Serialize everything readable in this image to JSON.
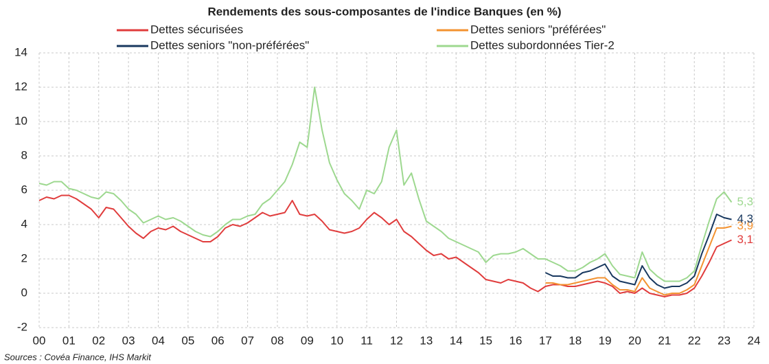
{
  "chart_data": {
    "type": "line",
    "title": "Rendements des sous-composantes de l'indice Banques (en %)",
    "source": "Sources : Covéa Finance, IHS Markit",
    "x": [
      2000,
      2000.25,
      2000.5,
      2000.75,
      2001,
      2001.25,
      2001.5,
      2001.75,
      2002,
      2002.25,
      2002.5,
      2002.75,
      2003,
      2003.25,
      2003.5,
      2003.75,
      2004,
      2004.25,
      2004.5,
      2004.75,
      2005,
      2005.25,
      2005.5,
      2005.75,
      2006,
      2006.25,
      2006.5,
      2006.75,
      2007,
      2007.25,
      2007.5,
      2007.75,
      2008,
      2008.25,
      2008.5,
      2008.75,
      2009,
      2009.25,
      2009.5,
      2009.75,
      2010,
      2010.25,
      2010.5,
      2010.75,
      2011,
      2011.25,
      2011.5,
      2011.75,
      2012,
      2012.25,
      2012.5,
      2012.75,
      2013,
      2013.25,
      2013.5,
      2013.75,
      2014,
      2014.25,
      2014.5,
      2014.75,
      2015,
      2015.25,
      2015.5,
      2015.75,
      2016,
      2016.25,
      2016.5,
      2016.75,
      2017,
      2017.25,
      2017.5,
      2017.75,
      2018,
      2018.25,
      2018.5,
      2018.75,
      2019,
      2019.25,
      2019.5,
      2019.75,
      2020,
      2020.25,
      2020.5,
      2020.75,
      2021,
      2021.25,
      2021.5,
      2021.75,
      2022,
      2022.25,
      2022.5,
      2022.75,
      2023,
      2023.25
    ],
    "series": [
      {
        "name": "Dettes sécurisées",
        "color": "#e03c3c",
        "values": [
          5.4,
          5.6,
          5.5,
          5.7,
          5.7,
          5.5,
          5.2,
          4.9,
          4.4,
          5.0,
          4.9,
          4.4,
          3.9,
          3.5,
          3.2,
          3.6,
          3.8,
          3.7,
          3.9,
          3.6,
          3.4,
          3.2,
          3.0,
          3.0,
          3.3,
          3.8,
          4.0,
          3.9,
          4.1,
          4.4,
          4.7,
          4.5,
          4.6,
          4.7,
          5.4,
          4.6,
          4.5,
          4.6,
          4.2,
          3.7,
          3.6,
          3.5,
          3.6,
          3.8,
          4.3,
          4.7,
          4.4,
          4.0,
          4.3,
          3.6,
          3.3,
          2.9,
          2.5,
          2.2,
          2.3,
          2.0,
          2.1,
          1.8,
          1.5,
          1.2,
          0.8,
          0.7,
          0.6,
          0.8,
          0.7,
          0.6,
          0.3,
          0.1,
          0.4,
          0.5,
          0.5,
          0.4,
          0.4,
          0.5,
          0.6,
          0.7,
          0.6,
          0.4,
          0.0,
          0.1,
          0.0,
          0.3,
          0.0,
          -0.1,
          -0.2,
          -0.1,
          -0.1,
          0.0,
          0.3,
          1.0,
          1.8,
          2.7,
          2.9,
          3.1
        ],
        "value_labels": [
          null,
          null,
          null,
          null,
          null,
          null,
          null,
          null,
          null,
          null,
          null,
          null,
          null,
          null,
          null,
          null,
          null,
          null,
          null,
          null,
          null,
          null,
          null,
          null,
          null,
          null,
          null,
          null,
          null,
          null,
          null,
          null,
          null,
          null,
          null,
          null,
          null,
          null,
          null,
          null,
          null,
          null,
          null,
          null,
          null,
          null,
          null,
          null,
          null,
          null,
          null,
          null,
          null,
          null,
          null,
          null,
          null,
          null,
          null,
          null,
          null,
          null,
          null,
          null,
          null,
          null,
          null,
          null,
          null,
          null,
          null,
          null,
          null,
          null,
          null,
          null,
          null,
          null,
          null,
          null,
          null,
          null,
          null,
          null,
          null,
          null,
          null,
          null,
          null,
          null,
          null,
          null,
          null,
          "3,1"
        ]
      },
      {
        "name": "Dettes seniors \"préférées\"",
        "color": "#f39230",
        "values": [
          null,
          null,
          null,
          null,
          null,
          null,
          null,
          null,
          null,
          null,
          null,
          null,
          null,
          null,
          null,
          null,
          null,
          null,
          null,
          null,
          null,
          null,
          null,
          null,
          null,
          null,
          null,
          null,
          null,
          null,
          null,
          null,
          null,
          null,
          null,
          null,
          null,
          null,
          null,
          null,
          null,
          null,
          null,
          null,
          null,
          null,
          null,
          null,
          null,
          null,
          null,
          null,
          null,
          null,
          null,
          null,
          null,
          null,
          null,
          null,
          null,
          null,
          null,
          null,
          null,
          null,
          null,
          null,
          0.6,
          0.6,
          0.5,
          0.5,
          0.6,
          0.7,
          0.8,
          0.9,
          0.9,
          0.5,
          0.2,
          0.2,
          0.1,
          0.9,
          0.3,
          0.1,
          -0.1,
          0.0,
          0.0,
          0.2,
          0.5,
          1.6,
          2.7,
          3.8,
          3.8,
          3.9
        ],
        "value_labels": [
          null,
          null,
          null,
          null,
          null,
          null,
          null,
          null,
          null,
          null,
          null,
          null,
          null,
          null,
          null,
          null,
          null,
          null,
          null,
          null,
          null,
          null,
          null,
          null,
          null,
          null,
          null,
          null,
          null,
          null,
          null,
          null,
          null,
          null,
          null,
          null,
          null,
          null,
          null,
          null,
          null,
          null,
          null,
          null,
          null,
          null,
          null,
          null,
          null,
          null,
          null,
          null,
          null,
          null,
          null,
          null,
          null,
          null,
          null,
          null,
          null,
          null,
          null,
          null,
          null,
          null,
          null,
          null,
          null,
          null,
          null,
          null,
          null,
          null,
          null,
          null,
          null,
          null,
          null,
          null,
          null,
          null,
          null,
          null,
          null,
          null,
          null,
          null,
          null,
          null,
          null,
          null,
          null,
          "3,9"
        ]
      },
      {
        "name": "Dettes seniors \"non-préférées\"",
        "color": "#17375e",
        "values": [
          null,
          null,
          null,
          null,
          null,
          null,
          null,
          null,
          null,
          null,
          null,
          null,
          null,
          null,
          null,
          null,
          null,
          null,
          null,
          null,
          null,
          null,
          null,
          null,
          null,
          null,
          null,
          null,
          null,
          null,
          null,
          null,
          null,
          null,
          null,
          null,
          null,
          null,
          null,
          null,
          null,
          null,
          null,
          null,
          null,
          null,
          null,
          null,
          null,
          null,
          null,
          null,
          null,
          null,
          null,
          null,
          null,
          null,
          null,
          null,
          null,
          null,
          null,
          null,
          null,
          null,
          null,
          null,
          1.2,
          1.0,
          1.0,
          0.9,
          0.9,
          1.2,
          1.3,
          1.5,
          1.7,
          1.0,
          0.7,
          0.6,
          0.5,
          1.6,
          0.9,
          0.5,
          0.3,
          0.4,
          0.4,
          0.6,
          1.0,
          2.3,
          3.4,
          4.6,
          4.4,
          4.3
        ],
        "value_labels": [
          null,
          null,
          null,
          null,
          null,
          null,
          null,
          null,
          null,
          null,
          null,
          null,
          null,
          null,
          null,
          null,
          null,
          null,
          null,
          null,
          null,
          null,
          null,
          null,
          null,
          null,
          null,
          null,
          null,
          null,
          null,
          null,
          null,
          null,
          null,
          null,
          null,
          null,
          null,
          null,
          null,
          null,
          null,
          null,
          null,
          null,
          null,
          null,
          null,
          null,
          null,
          null,
          null,
          null,
          null,
          null,
          null,
          null,
          null,
          null,
          null,
          null,
          null,
          null,
          null,
          null,
          null,
          null,
          null,
          null,
          null,
          null,
          null,
          null,
          null,
          null,
          null,
          null,
          null,
          null,
          null,
          null,
          null,
          null,
          null,
          null,
          null,
          null,
          null,
          null,
          null,
          null,
          null,
          "4,3"
        ]
      },
      {
        "name": "Dettes subordonnées Tier-2",
        "color": "#9dd88f",
        "values": [
          6.4,
          6.3,
          6.5,
          6.5,
          6.1,
          6.0,
          5.8,
          5.6,
          5.5,
          5.9,
          5.8,
          5.4,
          4.9,
          4.6,
          4.1,
          4.3,
          4.5,
          4.3,
          4.4,
          4.2,
          3.9,
          3.6,
          3.4,
          3.3,
          3.6,
          4.0,
          4.3,
          4.3,
          4.5,
          4.6,
          5.2,
          5.5,
          6.0,
          6.5,
          7.5,
          8.8,
          8.5,
          12.0,
          9.5,
          7.6,
          6.6,
          5.8,
          5.4,
          4.9,
          6.0,
          5.8,
          6.5,
          8.5,
          9.5,
          6.3,
          7.0,
          5.5,
          4.2,
          3.9,
          3.6,
          3.2,
          3.0,
          2.8,
          2.6,
          2.4,
          1.8,
          2.2,
          2.3,
          2.3,
          2.4,
          2.6,
          2.3,
          2.0,
          2.0,
          1.8,
          1.6,
          1.3,
          1.3,
          1.5,
          1.8,
          2.0,
          2.3,
          1.6,
          1.1,
          1.0,
          0.9,
          2.4,
          1.4,
          1.0,
          0.7,
          0.7,
          0.7,
          0.9,
          1.3,
          2.8,
          4.2,
          5.5,
          5.9,
          5.3
        ],
        "value_labels": [
          null,
          null,
          null,
          null,
          null,
          null,
          null,
          null,
          null,
          null,
          null,
          null,
          null,
          null,
          null,
          null,
          null,
          null,
          null,
          null,
          null,
          null,
          null,
          null,
          null,
          null,
          null,
          null,
          null,
          null,
          null,
          null,
          null,
          null,
          null,
          null,
          null,
          null,
          null,
          null,
          null,
          null,
          null,
          null,
          null,
          null,
          null,
          null,
          null,
          null,
          null,
          null,
          null,
          null,
          null,
          null,
          null,
          null,
          null,
          null,
          null,
          null,
          null,
          null,
          null,
          null,
          null,
          null,
          null,
          null,
          null,
          null,
          null,
          null,
          null,
          null,
          null,
          null,
          null,
          null,
          null,
          null,
          null,
          null,
          null,
          null,
          null,
          null,
          null,
          null,
          null,
          null,
          null,
          "5,3"
        ]
      }
    ],
    "xlim": [
      2000,
      2024
    ],
    "xticks": [
      {
        "value": 2000,
        "label": "00"
      },
      {
        "value": 2001,
        "label": "01"
      },
      {
        "value": 2002,
        "label": "02"
      },
      {
        "value": 2003,
        "label": "03"
      },
      {
        "value": 2004,
        "label": "04"
      },
      {
        "value": 2005,
        "label": "05"
      },
      {
        "value": 2006,
        "label": "06"
      },
      {
        "value": 2007,
        "label": "07"
      },
      {
        "value": 2008,
        "label": "08"
      },
      {
        "value": 2009,
        "label": "09"
      },
      {
        "value": 2010,
        "label": "10"
      },
      {
        "value": 2011,
        "label": "11"
      },
      {
        "value": 2012,
        "label": "12"
      },
      {
        "value": 2013,
        "label": "13"
      },
      {
        "value": 2014,
        "label": "14"
      },
      {
        "value": 2015,
        "label": "15"
      },
      {
        "value": 2016,
        "label": "16"
      },
      {
        "value": 2017,
        "label": "17"
      },
      {
        "value": 2018,
        "label": "18"
      },
      {
        "value": 2019,
        "label": "19"
      },
      {
        "value": 2020,
        "label": "20"
      },
      {
        "value": 2021,
        "label": "21"
      },
      {
        "value": 2022,
        "label": "22"
      },
      {
        "value": 2023,
        "label": "23"
      },
      {
        "value": 2024,
        "label": "24"
      }
    ],
    "ylim": [
      -2,
      14
    ],
    "yticks": [
      -2,
      0,
      2,
      4,
      6,
      8,
      10,
      12,
      14
    ],
    "grid": true
  }
}
